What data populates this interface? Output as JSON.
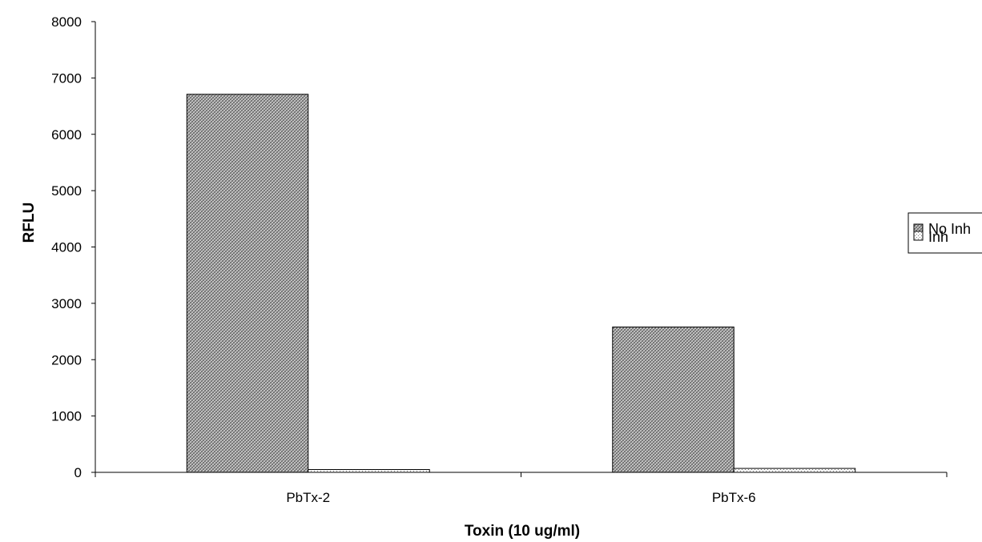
{
  "chart_data": {
    "type": "bar",
    "title": "",
    "xlabel": "Toxin (10 ug/ml)",
    "ylabel": "RFLU",
    "categories": [
      "PbTx-2",
      "PbTx-6"
    ],
    "series": [
      {
        "name": "No Inh",
        "values": [
          6710,
          2580
        ]
      },
      {
        "name": "Inh",
        "values": [
          50,
          70
        ]
      }
    ],
    "ylim": [
      0,
      8000
    ],
    "yticks": [
      0,
      1000,
      2000,
      3000,
      4000,
      5000,
      6000,
      7000,
      8000
    ],
    "grid": false,
    "legend_position": "right"
  }
}
